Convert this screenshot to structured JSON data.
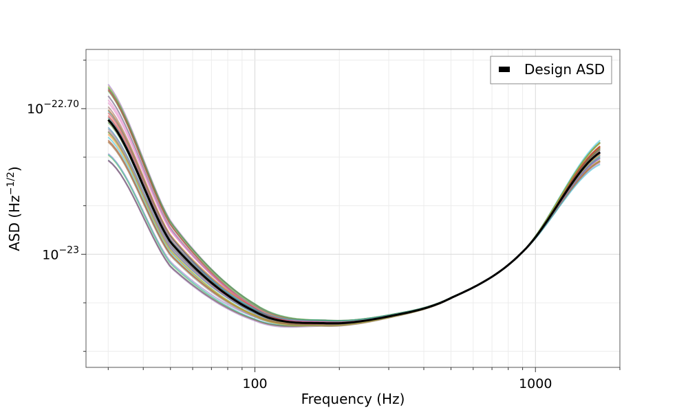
{
  "chart_data": {
    "type": "line",
    "title": "",
    "xlabel": "Frequency (Hz)",
    "ylabel_main": "ASD (Hz",
    "ylabel_exp": "−1/2",
    "ylabel_close": ")",
    "xscale": "log",
    "yscale": "log",
    "xlim": [
      25,
      2000
    ],
    "ylim_log10": [
      -23.233,
      -22.578
    ],
    "x_ticks": [
      {
        "value": 100,
        "label": "100"
      },
      {
        "value": 1000,
        "label": "1000"
      }
    ],
    "y_ticks": [
      {
        "log10": -22.7,
        "base": "10",
        "exp": "−22.70"
      },
      {
        "log10": -23.0,
        "base": "10",
        "exp": "−23"
      }
    ],
    "grid": true,
    "legend": {
      "position": "top-right",
      "entries": [
        {
          "label": "Design ASD",
          "color": "#000000"
        }
      ]
    },
    "design_asd": {
      "name": "Design ASD",
      "color": "#000000",
      "points": [
        [
          30,
          -22.723
        ],
        [
          50,
          -22.975
        ],
        [
          100,
          -23.118
        ],
        [
          180,
          -23.142
        ],
        [
          300,
          -23.128
        ],
        [
          500,
          -23.09
        ],
        [
          900,
          -22.995
        ],
        [
          1700,
          -22.79
        ]
      ]
    },
    "samples": {
      "count": 40,
      "x_range": [
        30,
        1700
      ],
      "min_frequency": 180,
      "colors": [
        "#1f77b4",
        "#ff7f0e",
        "#2ca02c",
        "#d62728",
        "#9467bd",
        "#8c564b",
        "#e377c2",
        "#7f7f7f",
        "#bcbd22",
        "#17becf"
      ]
    }
  }
}
